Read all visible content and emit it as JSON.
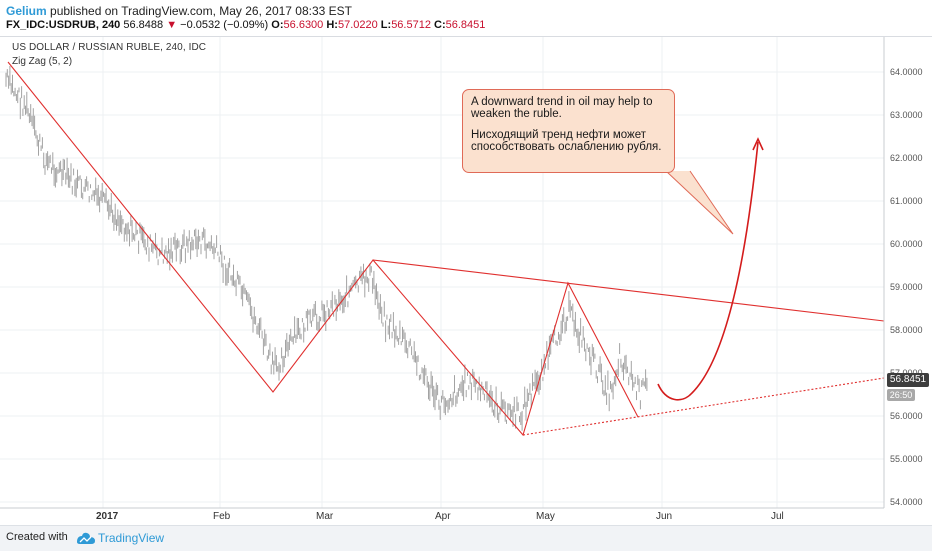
{
  "header": {
    "author": "Gelium",
    "published_text": "published on TradingView.com, May 26, 2017 08:33 EST",
    "symbol": "FX_IDC:USDRUB, 240",
    "last": "56.8488",
    "change": "−0.0532 (−0.09%)",
    "o_label": "O:",
    "o_value": "56.6300",
    "h_label": "H:",
    "h_value": "57.0220",
    "l_label": "L:",
    "l_value": "56.5712",
    "c_label": "C:",
    "c_value": "56.8451"
  },
  "chart": {
    "title": "US DOLLAR / RUSSIAN RUBLE, 240, IDC",
    "indicator": "Zig Zag (5, 2)",
    "y_ticks": [
      "64.0000",
      "63.0000",
      "62.0000",
      "61.0000",
      "60.0000",
      "59.0000",
      "58.0000",
      "57.0000",
      "56.0000",
      "55.0000",
      "54.0000"
    ],
    "x_ticks": [
      "2017",
      "Feb",
      "Mar",
      "Apr",
      "May",
      "Jun",
      "Jul"
    ],
    "price_badge": "56.8451",
    "time_badge": "26:50",
    "annotation": {
      "line1": "A downward trend in oil may help to weaken the ruble.",
      "line2": "Нисходящий тренд нефти может способствовать ослаблению рубля."
    },
    "colors": {
      "zigzag": "#e0302f",
      "bars": "#9a9a9a",
      "arrow": "#d41c1c"
    }
  },
  "footer": {
    "created_with": "Created with",
    "brand": "TradingView"
  }
}
